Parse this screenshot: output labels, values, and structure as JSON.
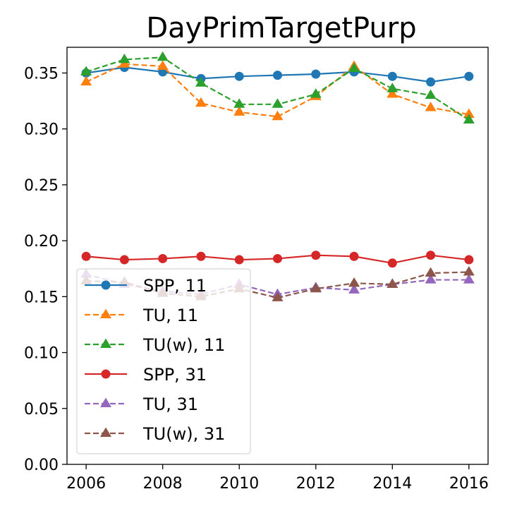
{
  "chart_data": {
    "type": "line",
    "title": "DayPrimTargetPurp",
    "xlabel": "",
    "ylabel": "",
    "x": [
      2006,
      2007,
      2008,
      2009,
      2010,
      2011,
      2012,
      2013,
      2014,
      2015,
      2016
    ],
    "xlim": [
      2005.5,
      2016.5
    ],
    "ylim": [
      0.0,
      0.373
    ],
    "xticks": [
      "2006",
      "2008",
      "2010",
      "2012",
      "2014",
      "2016"
    ],
    "yticks": [
      "0.00",
      "0.05",
      "0.10",
      "0.15",
      "0.20",
      "0.25",
      "0.30",
      "0.35"
    ],
    "grid": false,
    "legend_position": "lower-left",
    "series": [
      {
        "name": "SPP, 11",
        "color": "#1f77b4",
        "linestyle": "solid",
        "marker": "circle",
        "values": [
          0.35,
          0.355,
          0.351,
          0.345,
          0.347,
          0.348,
          0.349,
          0.351,
          0.347,
          0.342,
          0.347
        ]
      },
      {
        "name": "TU, 11",
        "color": "#ff7f0e",
        "linestyle": "dashed",
        "marker": "triangle",
        "values": [
          0.342,
          0.358,
          0.356,
          0.323,
          0.315,
          0.311,
          0.329,
          0.356,
          0.331,
          0.319,
          0.313
        ]
      },
      {
        "name": "TU(w), 11",
        "color": "#2ca02c",
        "linestyle": "dashed",
        "marker": "triangle",
        "values": [
          0.351,
          0.362,
          0.364,
          0.341,
          0.322,
          0.322,
          0.331,
          0.354,
          0.336,
          0.33,
          0.308
        ]
      },
      {
        "name": "SPP, 31",
        "color": "#d62728",
        "linestyle": "solid",
        "marker": "circle",
        "values": [
          0.186,
          0.183,
          0.184,
          0.186,
          0.183,
          0.184,
          0.187,
          0.186,
          0.18,
          0.187,
          0.183
        ]
      },
      {
        "name": "TU, 31",
        "color": "#9467bd",
        "linestyle": "dashed",
        "marker": "triangle",
        "values": [
          0.17,
          0.161,
          0.155,
          0.152,
          0.161,
          0.152,
          0.158,
          0.156,
          0.161,
          0.165,
          0.165
        ]
      },
      {
        "name": "TU(w), 31",
        "color": "#8c564b",
        "linestyle": "dashed",
        "marker": "triangle",
        "values": [
          0.164,
          0.163,
          0.153,
          0.15,
          0.157,
          0.149,
          0.157,
          0.162,
          0.161,
          0.171,
          0.172
        ]
      }
    ]
  }
}
